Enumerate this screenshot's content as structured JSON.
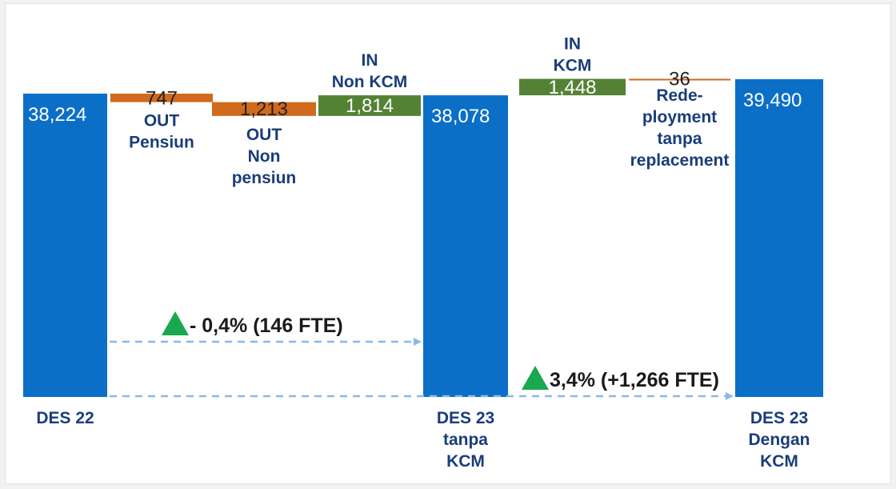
{
  "chart_data": {
    "type": "bar",
    "subtype": "waterfall",
    "categories": [
      "DES 22",
      "OUT Pensiun",
      "OUT Non pensiun",
      "IN Non KCM",
      "DES 23 tanpa KCM",
      "IN KCM",
      "Rede-ployment tanpa replacement",
      "DES 23 Dengan KCM"
    ],
    "steps": [
      {
        "label_lines": [
          "DES 22"
        ],
        "label_pos": "below",
        "kind": "total",
        "value": 38224,
        "value_label": "38,224"
      },
      {
        "label_lines": [
          "OUT",
          "Pensiun"
        ],
        "label_pos": "below",
        "kind": "decrease",
        "value": 747,
        "value_label": "747"
      },
      {
        "label_lines": [
          "OUT",
          "Non",
          "pensiun"
        ],
        "label_pos": "below",
        "kind": "decrease",
        "value": 1213,
        "value_label": "1,213"
      },
      {
        "label_lines": [
          "IN",
          "Non KCM"
        ],
        "label_pos": "above",
        "kind": "increase",
        "value": 1814,
        "value_label": "1,814"
      },
      {
        "label_lines": [
          "DES 23",
          "tanpa",
          "KCM"
        ],
        "label_pos": "below",
        "kind": "total",
        "value": 38078,
        "value_label": "38,078"
      },
      {
        "label_lines": [
          "IN",
          "KCM"
        ],
        "label_pos": "above",
        "kind": "increase",
        "value": 1448,
        "value_label": "1,448"
      },
      {
        "label_lines": [
          "Rede-",
          "ployment",
          "tanpa",
          "replacement"
        ],
        "label_pos": "below",
        "kind": "decrease",
        "value": 36,
        "value_label": "36"
      },
      {
        "label_lines": [
          "DES 23",
          "Dengan",
          "KCM"
        ],
        "label_pos": "below",
        "kind": "total",
        "value": 39490,
        "value_label": "39,490"
      }
    ],
    "annotations": [
      {
        "text": "- 0,4% (146 FTE)",
        "from": 0,
        "to": 4,
        "marker": "triangle-up"
      },
      {
        "text": "3,4% (+1,266 FTE)",
        "from": 0,
        "to": 7,
        "marker": "triangle-up"
      }
    ],
    "colors": {
      "total": "#0b6fc8",
      "decrease": "#d06a1c",
      "increase": "#548235",
      "total_text": "#ffffff",
      "decrease_text": "#222222",
      "increase_text": "#ffffff",
      "category_label": "#1a3d7a",
      "annotation_text": "#1a1a1a",
      "arrow": "#8db8e8",
      "triangle": "#1aa84e"
    },
    "grid": false,
    "legend": "none"
  }
}
